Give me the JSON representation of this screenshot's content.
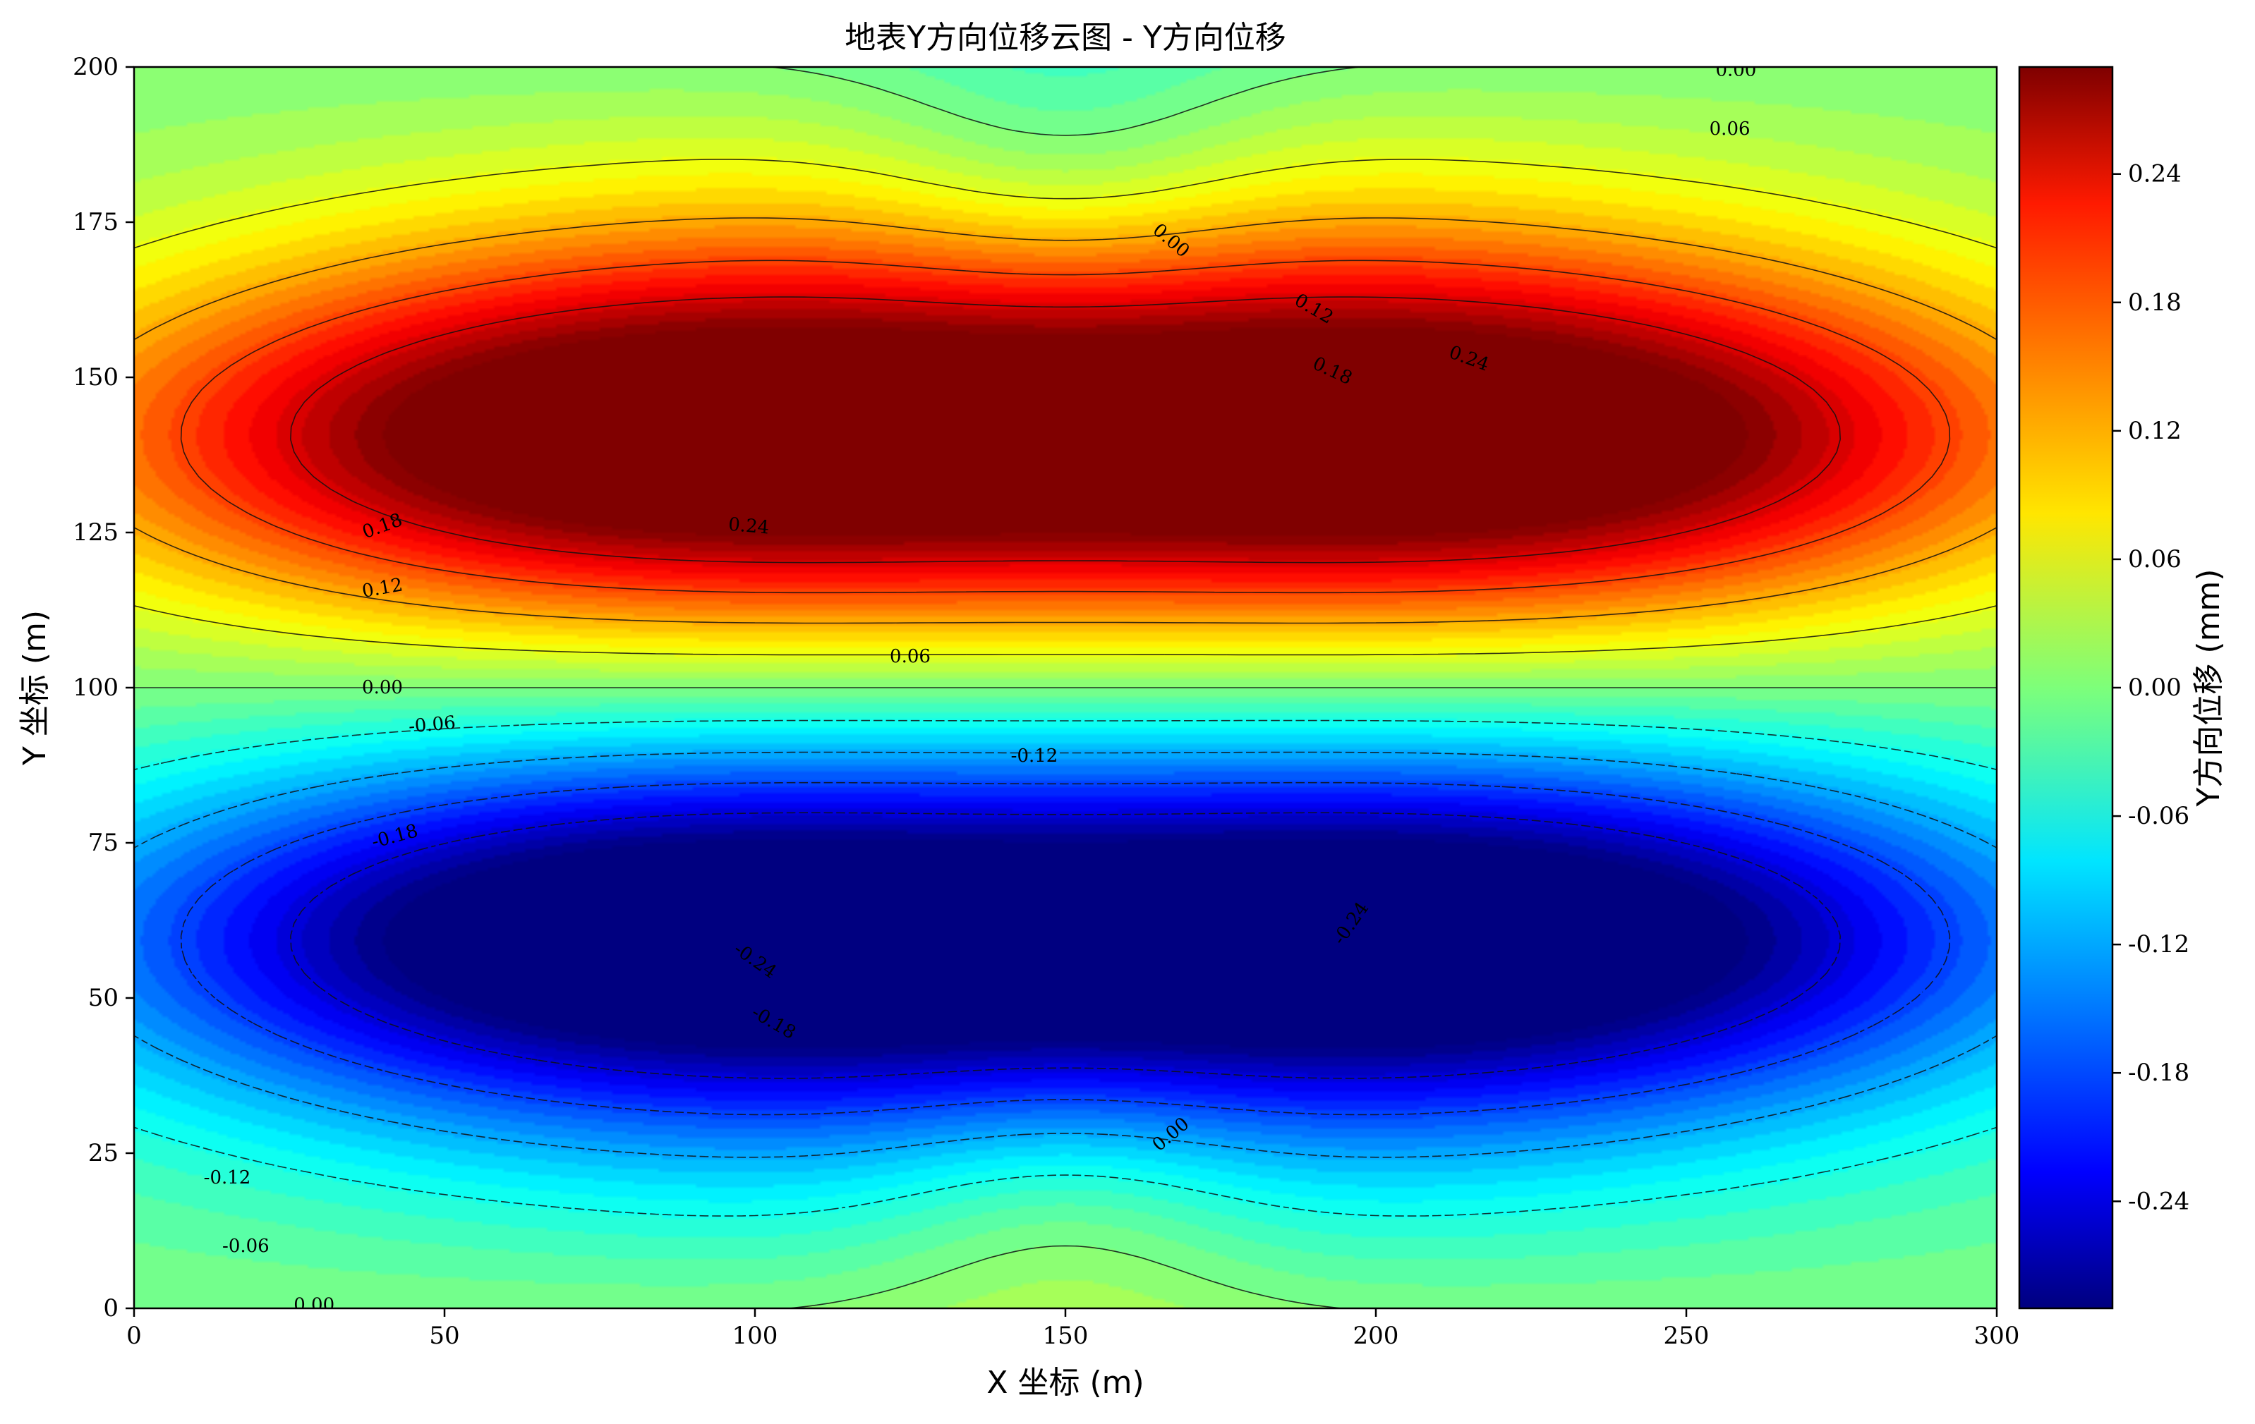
{
  "chart_data": {
    "type": "heatmap",
    "subtype": "filled-contour",
    "title": "地表Y方向位移云图 - Y方向位移",
    "xlabel": "X 坐标 (m)",
    "ylabel": "Y 坐标 (m)",
    "xlim": [
      0,
      300
    ],
    "ylim": [
      0,
      200
    ],
    "x_ticks": [
      0,
      50,
      100,
      150,
      200,
      250,
      300
    ],
    "y_ticks": [
      0,
      25,
      50,
      75,
      100,
      125,
      150,
      175,
      200
    ],
    "colormap": "jet",
    "colorbar": {
      "label": "Y方向位移 (mm)",
      "range": [
        -0.29,
        0.29
      ],
      "ticks": [
        -0.24,
        -0.18,
        -0.12,
        -0.06,
        0.0,
        0.06,
        0.12,
        0.18,
        0.24
      ],
      "tick_labels": [
        "-0.24",
        "-0.18",
        "-0.12",
        "-0.06",
        "0.00",
        "0.06",
        "0.12",
        "0.18",
        "0.24"
      ],
      "position": "right"
    },
    "contour_levels": [
      -0.24,
      -0.18,
      -0.12,
      -0.06,
      0.0,
      0.06,
      0.12,
      0.18,
      0.24
    ],
    "extrema": [
      {
        "kind": "max",
        "x": 78,
        "y": 140,
        "value": 0.27
      },
      {
        "kind": "max",
        "x": 222,
        "y": 140,
        "value": 0.27
      },
      {
        "kind": "min",
        "x": 78,
        "y": 60,
        "value": -0.27
      },
      {
        "kind": "min",
        "x": 222,
        "y": 60,
        "value": -0.27
      },
      {
        "kind": "local",
        "x": 150,
        "y": 185,
        "value": -0.02
      },
      {
        "kind": "local",
        "x": 150,
        "y": 20,
        "value": 0.04
      }
    ],
    "contour_labels": [
      {
        "x": 40,
        "y": 126,
        "text": "0.18",
        "rot": 20
      },
      {
        "x": 99,
        "y": 126,
        "text": "0.24",
        "rot": -5
      },
      {
        "x": 40,
        "y": 116,
        "text": "0.12",
        "rot": 10
      },
      {
        "x": 40,
        "y": 100,
        "text": "0.00",
        "rot": 0
      },
      {
        "x": 125,
        "y": 105,
        "text": "0.06",
        "rot": 0
      },
      {
        "x": 48,
        "y": 94,
        "text": "-0.06",
        "rot": 5
      },
      {
        "x": 145,
        "y": 89,
        "text": "-0.12",
        "rot": 0
      },
      {
        "x": 42,
        "y": 76,
        "text": "-0.18",
        "rot": 15
      },
      {
        "x": 100,
        "y": 56,
        "text": "-0.24",
        "rot": -35
      },
      {
        "x": 103,
        "y": 46,
        "text": "-0.18",
        "rot": -30
      },
      {
        "x": 15,
        "y": 21,
        "text": "-0.12",
        "rot": 0
      },
      {
        "x": 18,
        "y": 10,
        "text": "-0.06",
        "rot": 0
      },
      {
        "x": 29,
        "y": 0.5,
        "text": "0.00",
        "rot": 0
      },
      {
        "x": 167,
        "y": 28,
        "text": "0.00",
        "rot": 40
      },
      {
        "x": 167,
        "y": 172,
        "text": "0.00",
        "rot": -40
      },
      {
        "x": 190,
        "y": 161,
        "text": "0.12",
        "rot": -30
      },
      {
        "x": 193,
        "y": 151,
        "text": "0.18",
        "rot": -25
      },
      {
        "x": 215,
        "y": 153,
        "text": "0.24",
        "rot": -20
      },
      {
        "x": 196,
        "y": 62,
        "text": "-0.24",
        "rot": 55
      },
      {
        "x": 257,
        "y": 190,
        "text": "0.06",
        "rot": 0
      },
      {
        "x": 258,
        "y": 199.5,
        "text": "0.00",
        "rot": 0
      }
    ]
  }
}
